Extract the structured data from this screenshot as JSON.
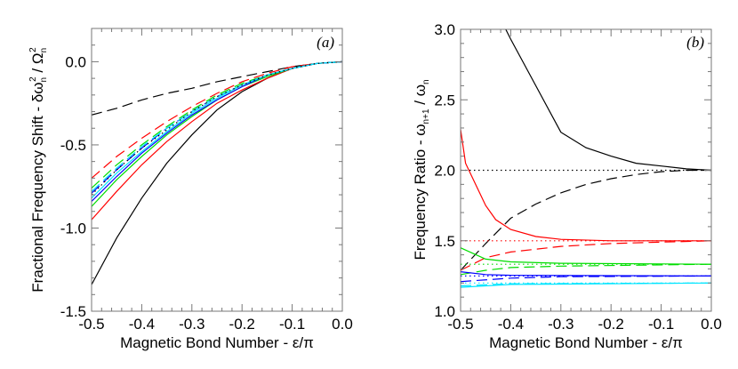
{
  "chart_data": [
    {
      "type": "line",
      "panel_label": "(a)",
      "xlabel": "Magnetic Bond Number - ε/π",
      "ylabel_parts": [
        "Fractional Frequency Shift - δω",
        "n",
        "2",
        " / Ω",
        "n",
        "2"
      ],
      "xlim": [
        -0.5,
        0.0
      ],
      "ylim": [
        -1.5,
        0.2
      ],
      "xticks": [
        "-0.5",
        "-0.4",
        "-0.3",
        "-0.2",
        "-0.1",
        "0.0"
      ],
      "yticks": [
        "-1.5",
        "-1.0",
        "-0.5",
        "0.0"
      ],
      "grid": false,
      "x": [
        -0.5,
        -0.45,
        -0.4,
        -0.35,
        -0.3,
        -0.25,
        -0.2,
        -0.15,
        -0.1,
        -0.05,
        0.0
      ],
      "series": [
        {
          "color": "#000000",
          "style": "solid",
          "y": [
            -1.34,
            -1.06,
            -0.82,
            -0.61,
            -0.44,
            -0.29,
            -0.18,
            -0.1,
            -0.04,
            -0.01,
            0
          ]
        },
        {
          "color": "#000000",
          "style": "dashed",
          "y": [
            -0.32,
            -0.28,
            -0.23,
            -0.19,
            -0.16,
            -0.12,
            -0.09,
            -0.06,
            -0.03,
            -0.01,
            0
          ]
        },
        {
          "color": "#ff0000",
          "style": "solid",
          "y": [
            -0.95,
            -0.78,
            -0.62,
            -0.48,
            -0.36,
            -0.25,
            -0.17,
            -0.1,
            -0.04,
            -0.01,
            0
          ]
        },
        {
          "color": "#ff0000",
          "style": "dashed",
          "y": [
            -0.7,
            -0.57,
            -0.46,
            -0.36,
            -0.27,
            -0.19,
            -0.12,
            -0.07,
            -0.03,
            -0.01,
            0
          ]
        },
        {
          "color": "#00dd00",
          "style": "solid",
          "y": [
            -0.87,
            -0.71,
            -0.57,
            -0.44,
            -0.33,
            -0.23,
            -0.15,
            -0.09,
            -0.04,
            -0.01,
            0
          ]
        },
        {
          "color": "#00dd00",
          "style": "dashed",
          "y": [
            -0.76,
            -0.62,
            -0.5,
            -0.39,
            -0.29,
            -0.2,
            -0.13,
            -0.08,
            -0.04,
            -0.01,
            0
          ]
        },
        {
          "color": "#0000ff",
          "style": "solid",
          "y": [
            -0.84,
            -0.69,
            -0.55,
            -0.43,
            -0.32,
            -0.23,
            -0.15,
            -0.08,
            -0.04,
            -0.01,
            0
          ]
        },
        {
          "color": "#0000ff",
          "style": "dashed",
          "y": [
            -0.79,
            -0.65,
            -0.52,
            -0.4,
            -0.3,
            -0.21,
            -0.14,
            -0.08,
            -0.04,
            -0.01,
            0
          ]
        },
        {
          "color": "#00e5ff",
          "style": "solid",
          "y": [
            -0.82,
            -0.67,
            -0.54,
            -0.42,
            -0.31,
            -0.22,
            -0.14,
            -0.08,
            -0.04,
            -0.01,
            0
          ]
        },
        {
          "color": "#00e5ff",
          "style": "dashed",
          "y": [
            -0.78,
            -0.64,
            -0.51,
            -0.4,
            -0.3,
            -0.21,
            -0.14,
            -0.08,
            -0.04,
            -0.01,
            0
          ]
        },
        {
          "color": "#000000",
          "style": "dotted",
          "y": [
            -0.8,
            -0.65,
            -0.52,
            -0.41,
            -0.3,
            -0.21,
            -0.14,
            -0.08,
            -0.04,
            -0.01,
            0
          ]
        }
      ]
    },
    {
      "type": "line",
      "panel_label": "(b)",
      "xlabel": "Magnetic Bond Number - ε/π",
      "ylabel_parts": [
        "Frequency Ratio - ω",
        "n+1",
        "",
        " / ω",
        "n",
        ""
      ],
      "xlim": [
        -0.5,
        0.0
      ],
      "ylim": [
        1.0,
        3.0
      ],
      "xticks": [
        "-0.5",
        "-0.4",
        "-0.3",
        "-0.2",
        "-0.1",
        "0.0"
      ],
      "yticks": [
        "1.0",
        "1.5",
        "2.0",
        "2.5",
        "3.0"
      ],
      "grid": false,
      "series": [
        {
          "color": "#000000",
          "style": "solid",
          "x": [
            -0.41,
            -0.4,
            -0.35,
            -0.3,
            -0.25,
            -0.2,
            -0.15,
            -0.1,
            -0.05,
            0
          ],
          "y": [
            3.0,
            2.93,
            2.6,
            2.27,
            2.16,
            2.1,
            2.05,
            2.03,
            2.01,
            2.0
          ]
        },
        {
          "color": "#000000",
          "style": "dashed",
          "x": [
            -0.5,
            -0.45,
            -0.4,
            -0.35,
            -0.3,
            -0.25,
            -0.2,
            -0.15,
            -0.1,
            -0.05,
            0
          ],
          "y": [
            1.29,
            1.48,
            1.66,
            1.76,
            1.84,
            1.9,
            1.94,
            1.97,
            1.99,
            2.0,
            2.0
          ]
        },
        {
          "color": "#000000",
          "style": "dotted",
          "x": [
            -0.5,
            0
          ],
          "y": [
            2.0,
            2.0
          ]
        },
        {
          "color": "#ff0000",
          "style": "solid",
          "x": [
            -0.5,
            -0.49,
            -0.47,
            -0.45,
            -0.43,
            -0.4,
            -0.35,
            -0.3,
            -0.2,
            0
          ],
          "y": [
            2.29,
            2.05,
            1.9,
            1.75,
            1.65,
            1.58,
            1.53,
            1.51,
            1.5,
            1.5
          ]
        },
        {
          "color": "#ff0000",
          "style": "dashed",
          "x": [
            -0.5,
            -0.45,
            -0.4,
            -0.3,
            -0.2,
            -0.1,
            0
          ],
          "y": [
            1.29,
            1.38,
            1.42,
            1.46,
            1.48,
            1.49,
            1.5
          ]
        },
        {
          "color": "#ff0000",
          "style": "dotted",
          "x": [
            -0.5,
            0
          ],
          "y": [
            1.5,
            1.5
          ]
        },
        {
          "color": "#00dd00",
          "style": "solid",
          "x": [
            -0.5,
            -0.45,
            -0.4,
            -0.3,
            0
          ],
          "y": [
            1.45,
            1.37,
            1.35,
            1.34,
            1.333
          ]
        },
        {
          "color": "#00dd00",
          "style": "dashed",
          "x": [
            -0.5,
            -0.45,
            -0.4,
            -0.3,
            0
          ],
          "y": [
            1.26,
            1.29,
            1.31,
            1.32,
            1.333
          ]
        },
        {
          "color": "#00dd00",
          "style": "dotted",
          "x": [
            -0.5,
            0
          ],
          "y": [
            1.333,
            1.333
          ]
        },
        {
          "color": "#0000ff",
          "style": "solid",
          "x": [
            -0.5,
            -0.45,
            -0.4,
            0
          ],
          "y": [
            1.28,
            1.26,
            1.255,
            1.25
          ]
        },
        {
          "color": "#0000ff",
          "style": "dashed",
          "x": [
            -0.5,
            -0.4,
            -0.3,
            0
          ],
          "y": [
            1.21,
            1.235,
            1.245,
            1.25
          ]
        },
        {
          "color": "#0000ff",
          "style": "dotted",
          "x": [
            -0.5,
            0
          ],
          "y": [
            1.25,
            1.25
          ]
        },
        {
          "color": "#00e5ff",
          "style": "solid",
          "x": [
            -0.5,
            -0.4,
            0
          ],
          "y": [
            1.17,
            1.19,
            1.2
          ]
        },
        {
          "color": "#00e5ff",
          "style": "dashed",
          "x": [
            -0.5,
            -0.4,
            0
          ],
          "y": [
            1.18,
            1.195,
            1.2
          ]
        },
        {
          "color": "#00e5ff",
          "style": "dotted",
          "x": [
            -0.5,
            0
          ],
          "y": [
            1.2,
            1.2
          ]
        }
      ]
    }
  ]
}
